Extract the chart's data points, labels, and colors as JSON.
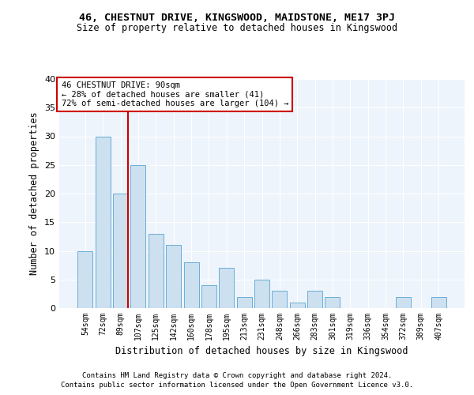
{
  "title1": "46, CHESTNUT DRIVE, KINGSWOOD, MAIDSTONE, ME17 3PJ",
  "title2": "Size of property relative to detached houses in Kingswood",
  "xlabel": "Distribution of detached houses by size in Kingswood",
  "ylabel": "Number of detached properties",
  "categories": [
    "54sqm",
    "72sqm",
    "89sqm",
    "107sqm",
    "125sqm",
    "142sqm",
    "160sqm",
    "178sqm",
    "195sqm",
    "213sqm",
    "231sqm",
    "248sqm",
    "266sqm",
    "283sqm",
    "301sqm",
    "319sqm",
    "336sqm",
    "354sqm",
    "372sqm",
    "389sqm",
    "407sqm"
  ],
  "values": [
    10,
    30,
    20,
    25,
    13,
    11,
    8,
    4,
    7,
    2,
    5,
    3,
    1,
    3,
    2,
    0,
    0,
    0,
    2,
    0,
    2
  ],
  "bar_color": "#cce0f0",
  "bar_edge_color": "#6aaed6",
  "vline_color": "#cc0000",
  "annotation_line1": "46 CHESTNUT DRIVE: 90sqm",
  "annotation_line2": "← 28% of detached houses are smaller (41)",
  "annotation_line3": "72% of semi-detached houses are larger (104) →",
  "annotation_box_color": "#ffffff",
  "annotation_box_edge": "#cc0000",
  "ylim": [
    0,
    40
  ],
  "yticks": [
    0,
    5,
    10,
    15,
    20,
    25,
    30,
    35,
    40
  ],
  "footer1": "Contains HM Land Registry data © Crown copyright and database right 2024.",
  "footer2": "Contains public sector information licensed under the Open Government Licence v3.0.",
  "bg_color": "#eef4fb",
  "fig_bg_color": "#ffffff"
}
